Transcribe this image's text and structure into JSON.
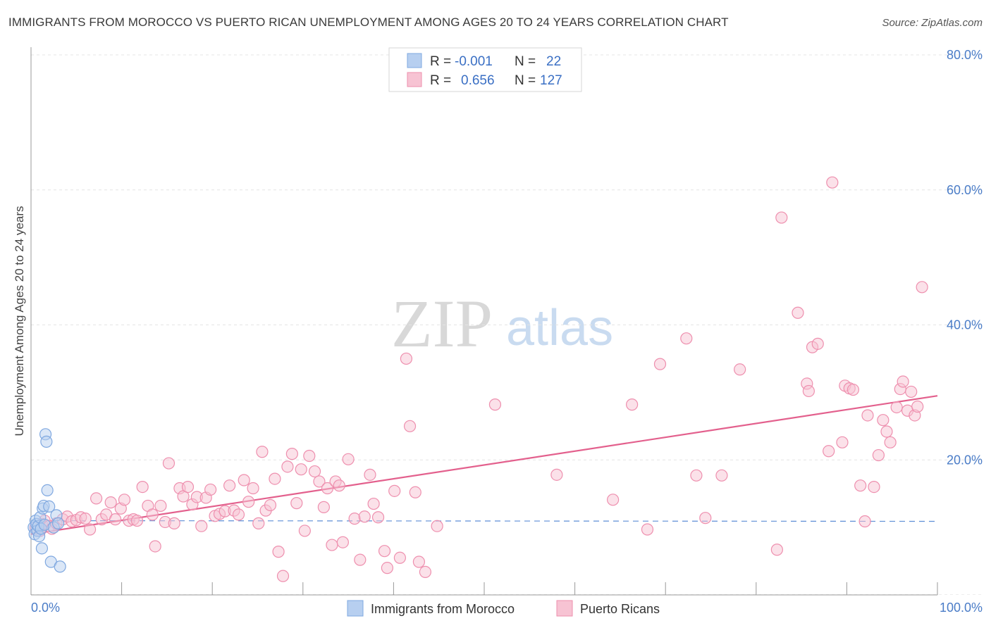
{
  "title": "IMMIGRANTS FROM MOROCCO VS PUERTO RICAN UNEMPLOYMENT AMONG AGES 20 TO 24 YEARS CORRELATION CHART",
  "source": "Source: ZipAtlas.com",
  "watermark": {
    "zip": "ZIP",
    "atlas": "atlas"
  },
  "chart_data": {
    "type": "scatter",
    "xlabel": "",
    "ylabel": "Unemployment Among Ages 20 to 24 years",
    "xlim": [
      0,
      100
    ],
    "ylim": [
      0,
      80
    ],
    "x_tick_labels": [
      "0.0%",
      "100.0%"
    ],
    "y_ticks": [
      20,
      40,
      60,
      80
    ],
    "y_tick_labels": [
      "20.0%",
      "40.0%",
      "60.0%",
      "80.0%"
    ],
    "legend": {
      "series1": {
        "r_label": "R =",
        "r_value": "-0.001",
        "n_label": "N =",
        "n_value": "22"
      },
      "series2": {
        "r_label": "R =",
        "r_value": "0.656",
        "n_label": "N =",
        "n_value": "127"
      }
    },
    "series": [
      {
        "name": "Immigrants from Morocco",
        "color": "#7fa8e0",
        "fill": "#b7cff0",
        "trend": {
          "x": [
            0,
            100
          ],
          "y": [
            11.0,
            10.9
          ],
          "style": "dashed"
        },
        "points": [
          [
            0.3,
            10.0
          ],
          [
            0.4,
            9.0
          ],
          [
            0.5,
            11.0
          ],
          [
            0.6,
            10.5
          ],
          [
            0.7,
            9.5
          ],
          [
            0.8,
            10.2
          ],
          [
            0.9,
            8.7
          ],
          [
            1.0,
            11.5
          ],
          [
            1.1,
            9.8
          ],
          [
            1.2,
            6.9
          ],
          [
            1.3,
            12.8
          ],
          [
            1.4,
            13.2
          ],
          [
            1.5,
            10.4
          ],
          [
            1.6,
            23.8
          ],
          [
            1.7,
            22.7
          ],
          [
            1.8,
            15.5
          ],
          [
            2.0,
            13.1
          ],
          [
            2.2,
            4.9
          ],
          [
            2.5,
            10.0
          ],
          [
            2.8,
            11.8
          ],
          [
            3.0,
            10.6
          ],
          [
            3.2,
            4.2
          ]
        ]
      },
      {
        "name": "Puerto Ricans",
        "color": "#ee8fae",
        "fill": "#f7c3d3",
        "trend": {
          "x": [
            0,
            100
          ],
          "y": [
            9.0,
            29.5
          ],
          "style": "solid"
        },
        "points": [
          [
            0.5,
            10.0
          ],
          [
            1.0,
            9.5
          ],
          [
            1.2,
            10.5
          ],
          [
            1.5,
            11.0
          ],
          [
            2.0,
            10.2
          ],
          [
            2.3,
            9.8
          ],
          [
            2.8,
            10.6
          ],
          [
            3.5,
            11.2
          ],
          [
            4.0,
            11.6
          ],
          [
            4.5,
            10.9
          ],
          [
            5.0,
            11.1
          ],
          [
            5.5,
            11.5
          ],
          [
            6.0,
            11.3
          ],
          [
            6.5,
            9.7
          ],
          [
            7.2,
            14.3
          ],
          [
            7.8,
            11.2
          ],
          [
            8.3,
            11.9
          ],
          [
            8.8,
            13.7
          ],
          [
            9.3,
            11.2
          ],
          [
            9.9,
            12.8
          ],
          [
            10.3,
            14.1
          ],
          [
            10.8,
            11.0
          ],
          [
            11.3,
            11.2
          ],
          [
            11.7,
            11.0
          ],
          [
            12.3,
            16.0
          ],
          [
            12.9,
            13.2
          ],
          [
            13.4,
            11.9
          ],
          [
            13.7,
            7.2
          ],
          [
            14.3,
            13.2
          ],
          [
            14.8,
            10.8
          ],
          [
            15.2,
            19.5
          ],
          [
            15.8,
            10.6
          ],
          [
            16.4,
            15.8
          ],
          [
            16.8,
            14.6
          ],
          [
            17.3,
            16.0
          ],
          [
            17.8,
            13.4
          ],
          [
            18.3,
            14.5
          ],
          [
            18.8,
            10.2
          ],
          [
            19.3,
            14.4
          ],
          [
            19.8,
            15.6
          ],
          [
            20.3,
            11.7
          ],
          [
            20.8,
            12.0
          ],
          [
            21.4,
            12.4
          ],
          [
            21.9,
            16.2
          ],
          [
            22.4,
            12.5
          ],
          [
            22.9,
            11.9
          ],
          [
            23.5,
            17.0
          ],
          [
            24.0,
            13.8
          ],
          [
            24.5,
            15.8
          ],
          [
            25.1,
            10.6
          ],
          [
            25.5,
            21.2
          ],
          [
            25.9,
            12.5
          ],
          [
            26.4,
            13.3
          ],
          [
            26.9,
            17.2
          ],
          [
            27.3,
            6.4
          ],
          [
            27.8,
            2.8
          ],
          [
            28.3,
            19.0
          ],
          [
            28.8,
            20.9
          ],
          [
            29.3,
            13.6
          ],
          [
            29.8,
            18.6
          ],
          [
            30.2,
            9.5
          ],
          [
            30.7,
            20.6
          ],
          [
            31.3,
            18.3
          ],
          [
            31.8,
            16.8
          ],
          [
            32.3,
            13.0
          ],
          [
            32.7,
            15.8
          ],
          [
            33.2,
            7.4
          ],
          [
            33.6,
            16.8
          ],
          [
            34.0,
            16.2
          ],
          [
            34.4,
            7.8
          ],
          [
            35.0,
            20.1
          ],
          [
            35.7,
            11.3
          ],
          [
            36.3,
            5.2
          ],
          [
            36.8,
            11.6
          ],
          [
            37.4,
            17.8
          ],
          [
            37.8,
            13.5
          ],
          [
            38.3,
            11.5
          ],
          [
            39.0,
            6.5
          ],
          [
            39.3,
            4.0
          ],
          [
            40.1,
            15.4
          ],
          [
            40.7,
            5.5
          ],
          [
            41.4,
            35.0
          ],
          [
            41.8,
            25.0
          ],
          [
            42.4,
            15.2
          ],
          [
            42.8,
            4.9
          ],
          [
            43.5,
            3.4
          ],
          [
            44.8,
            10.2
          ],
          [
            51.2,
            28.2
          ],
          [
            58.0,
            17.8
          ],
          [
            64.2,
            14.1
          ],
          [
            66.3,
            28.2
          ],
          [
            68.0,
            9.7
          ],
          [
            69.4,
            34.2
          ],
          [
            72.3,
            38.0
          ],
          [
            73.4,
            17.7
          ],
          [
            76.2,
            17.7
          ],
          [
            74.4,
            11.4
          ],
          [
            78.2,
            33.4
          ],
          [
            82.3,
            6.7
          ],
          [
            82.8,
            55.9
          ],
          [
            84.6,
            41.8
          ],
          [
            85.6,
            31.3
          ],
          [
            85.8,
            30.2
          ],
          [
            86.2,
            36.7
          ],
          [
            86.8,
            37.2
          ],
          [
            88.0,
            21.3
          ],
          [
            88.4,
            61.1
          ],
          [
            89.5,
            22.6
          ],
          [
            89.8,
            31.0
          ],
          [
            90.3,
            30.6
          ],
          [
            90.7,
            30.4
          ],
          [
            91.5,
            16.2
          ],
          [
            92.0,
            10.9
          ],
          [
            92.3,
            26.6
          ],
          [
            93.0,
            16.0
          ],
          [
            93.5,
            20.7
          ],
          [
            94.0,
            25.9
          ],
          [
            94.4,
            24.2
          ],
          [
            94.8,
            22.6
          ],
          [
            95.5,
            27.8
          ],
          [
            95.9,
            30.5
          ],
          [
            96.2,
            31.6
          ],
          [
            96.7,
            27.3
          ],
          [
            97.1,
            30.1
          ],
          [
            97.5,
            26.6
          ],
          [
            97.8,
            27.9
          ],
          [
            98.3,
            45.6
          ]
        ]
      }
    ]
  }
}
